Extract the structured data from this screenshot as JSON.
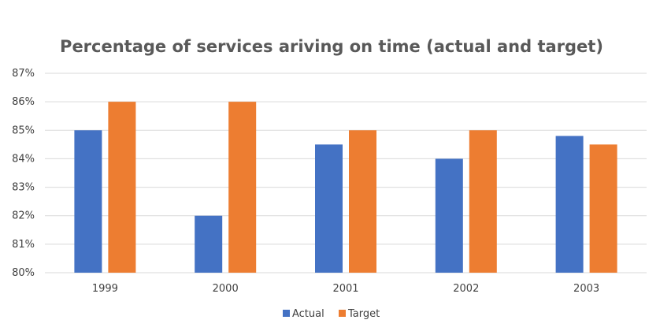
{
  "chart_data": {
    "type": "bar",
    "title": "Percentage of services ariving on time (actual and target)",
    "xlabel": "",
    "ylabel": "",
    "categories": [
      "1999",
      "2000",
      "2001",
      "2002",
      "2003"
    ],
    "series": [
      {
        "name": "Actual",
        "color": "#4472C4",
        "values": [
          85,
          82,
          84.5,
          84,
          84.8
        ]
      },
      {
        "name": "Target",
        "color": "#ED7D31",
        "values": [
          86,
          86,
          85,
          85,
          84.5
        ]
      }
    ],
    "ylim": [
      80,
      87
    ],
    "yticks": [
      "80%",
      "81%",
      "82%",
      "83%",
      "84%",
      "85%",
      "86%",
      "87%"
    ],
    "grid": true,
    "legend_position": "bottom"
  }
}
